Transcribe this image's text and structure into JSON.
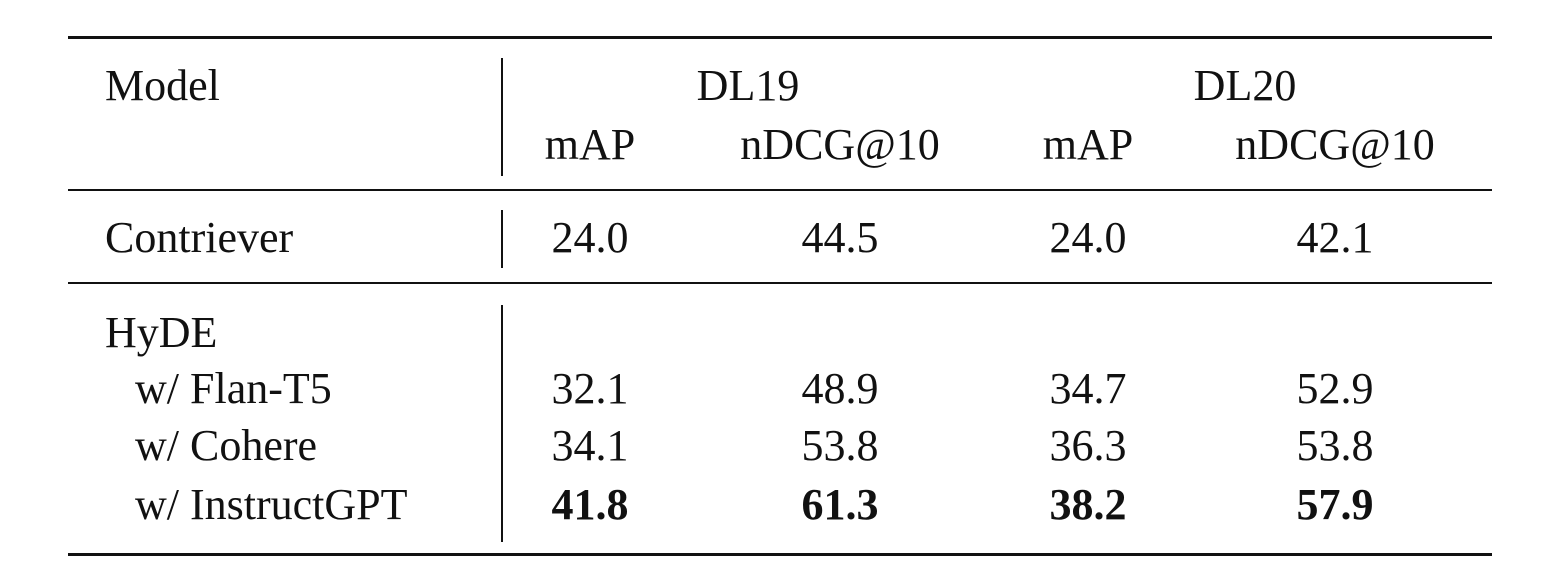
{
  "table": {
    "columns": {
      "model": "Model",
      "groups": [
        {
          "name": "DL19",
          "metrics": [
            "mAP",
            "nDCG@10"
          ]
        },
        {
          "name": "DL20",
          "metrics": [
            "mAP",
            "nDCG@10"
          ]
        }
      ]
    },
    "rows": [
      {
        "label": "Contriever",
        "values": [
          "24.0",
          "44.5",
          "24.0",
          "42.1"
        ]
      },
      {
        "label": "HyDE"
      },
      {
        "label": "w/ Flan-T5",
        "values": [
          "32.1",
          "48.9",
          "34.7",
          "52.9"
        ]
      },
      {
        "label": "w/ Cohere",
        "values": [
          "34.1",
          "53.8",
          "36.3",
          "53.8"
        ]
      },
      {
        "label": "w/ InstructGPT",
        "values": [
          "41.8",
          "61.3",
          "38.2",
          "57.9"
        ]
      }
    ]
  }
}
